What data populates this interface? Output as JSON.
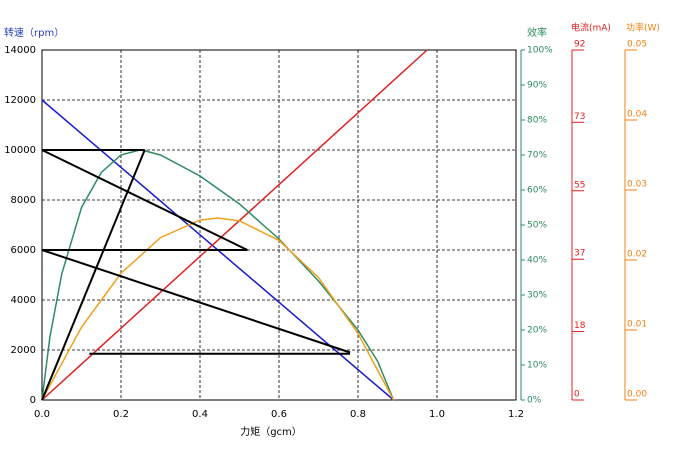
{
  "chart_data": {
    "type": "line",
    "x_label": "力矩（gcm）",
    "y_label": "转速（rpm）",
    "y2_label": "效率",
    "y3_label": "电流(mA)",
    "y4_label": "功率(W)",
    "xlim": [
      0,
      1.2
    ],
    "xticks": [
      {
        "value": 0,
        "label": "0.0"
      },
      0.2,
      0.4,
      0.6,
      0.8,
      {
        "value": 1,
        "label": "1.0"
      },
      1.2
    ],
    "ylim": [
      0,
      14000
    ],
    "yticks": [
      0,
      2000,
      4000,
      6000,
      8000,
      10000,
      12000,
      14000
    ],
    "y2lim": [
      0,
      100
    ],
    "y2ticks": [
      {
        "value": 0,
        "label": "0%"
      },
      {
        "value": 10,
        "label": "10%"
      },
      {
        "value": 20,
        "label": "20%"
      },
      {
        "value": 30,
        "label": "30%"
      },
      {
        "value": 40,
        "label": "40%"
      },
      {
        "value": 50,
        "label": "50%"
      },
      {
        "value": 60,
        "label": "60%"
      },
      {
        "value": 70,
        "label": "70%"
      },
      {
        "value": 80,
        "label": "80%"
      },
      {
        "value": 90,
        "label": "90%"
      },
      {
        "value": 100,
        "label": "100%"
      }
    ],
    "y3lim": [
      0,
      92
    ],
    "y3ticks": [
      0,
      18,
      37,
      55,
      73,
      92
    ],
    "y4lim": [
      0,
      0.05
    ],
    "y4ticks": [
      {
        "value": 0,
        "label": "0.00"
      },
      0.01,
      0.02,
      0.03,
      0.04,
      0.05
    ],
    "grid": true,
    "series": [
      {
        "color": "#1a1ad0",
        "axis": "y",
        "x": [
          0,
          0.89
        ],
        "values": [
          12000,
          0
        ]
      },
      {
        "color": "#e02020",
        "axis": "y3",
        "x": [
          0,
          0.975
        ],
        "values": [
          0,
          92
        ]
      },
      {
        "color": "#2e8b60",
        "axis": "y2",
        "x": [
          0,
          0.02,
          0.05,
          0.1,
          0.15,
          0.2,
          0.25,
          0.3,
          0.4,
          0.5,
          0.6,
          0.7,
          0.8,
          0.85,
          0.89
        ],
        "values": [
          0,
          18,
          36,
          55,
          65,
          70,
          71.5,
          70,
          64,
          56,
          46,
          34,
          20,
          11,
          0
        ]
      },
      {
        "color": "#f0a020",
        "axis": "y4",
        "x": [
          0,
          0.1,
          0.2,
          0.3,
          0.4,
          0.445,
          0.5,
          0.6,
          0.7,
          0.8,
          0.89
        ],
        "values": [
          0,
          0.0104,
          0.0181,
          0.0232,
          0.0257,
          0.026,
          0.0256,
          0.0228,
          0.0175,
          0.0095,
          0
        ]
      },
      {
        "color": "#000000",
        "axis": "y",
        "x": [
          0,
          0.26
        ],
        "values": [
          0,
          10000
        ]
      },
      {
        "color": "#000000",
        "axis": "y",
        "x": [
          0,
          0.26
        ],
        "values": [
          10000,
          10000
        ]
      },
      {
        "color": "#000000",
        "axis": "y",
        "x": [
          0,
          0.52
        ],
        "values": [
          10000,
          6000
        ]
      },
      {
        "color": "#000000",
        "axis": "y",
        "x": [
          0,
          0.52
        ],
        "values": [
          6000,
          6000
        ]
      },
      {
        "color": "#000000",
        "axis": "y",
        "x": [
          0,
          0.78
        ],
        "values": [
          6000,
          1900
        ]
      },
      {
        "color": "#000000",
        "axis": "y",
        "x": [
          0.12,
          0.78
        ],
        "values": [
          1850,
          1850
        ]
      }
    ]
  }
}
